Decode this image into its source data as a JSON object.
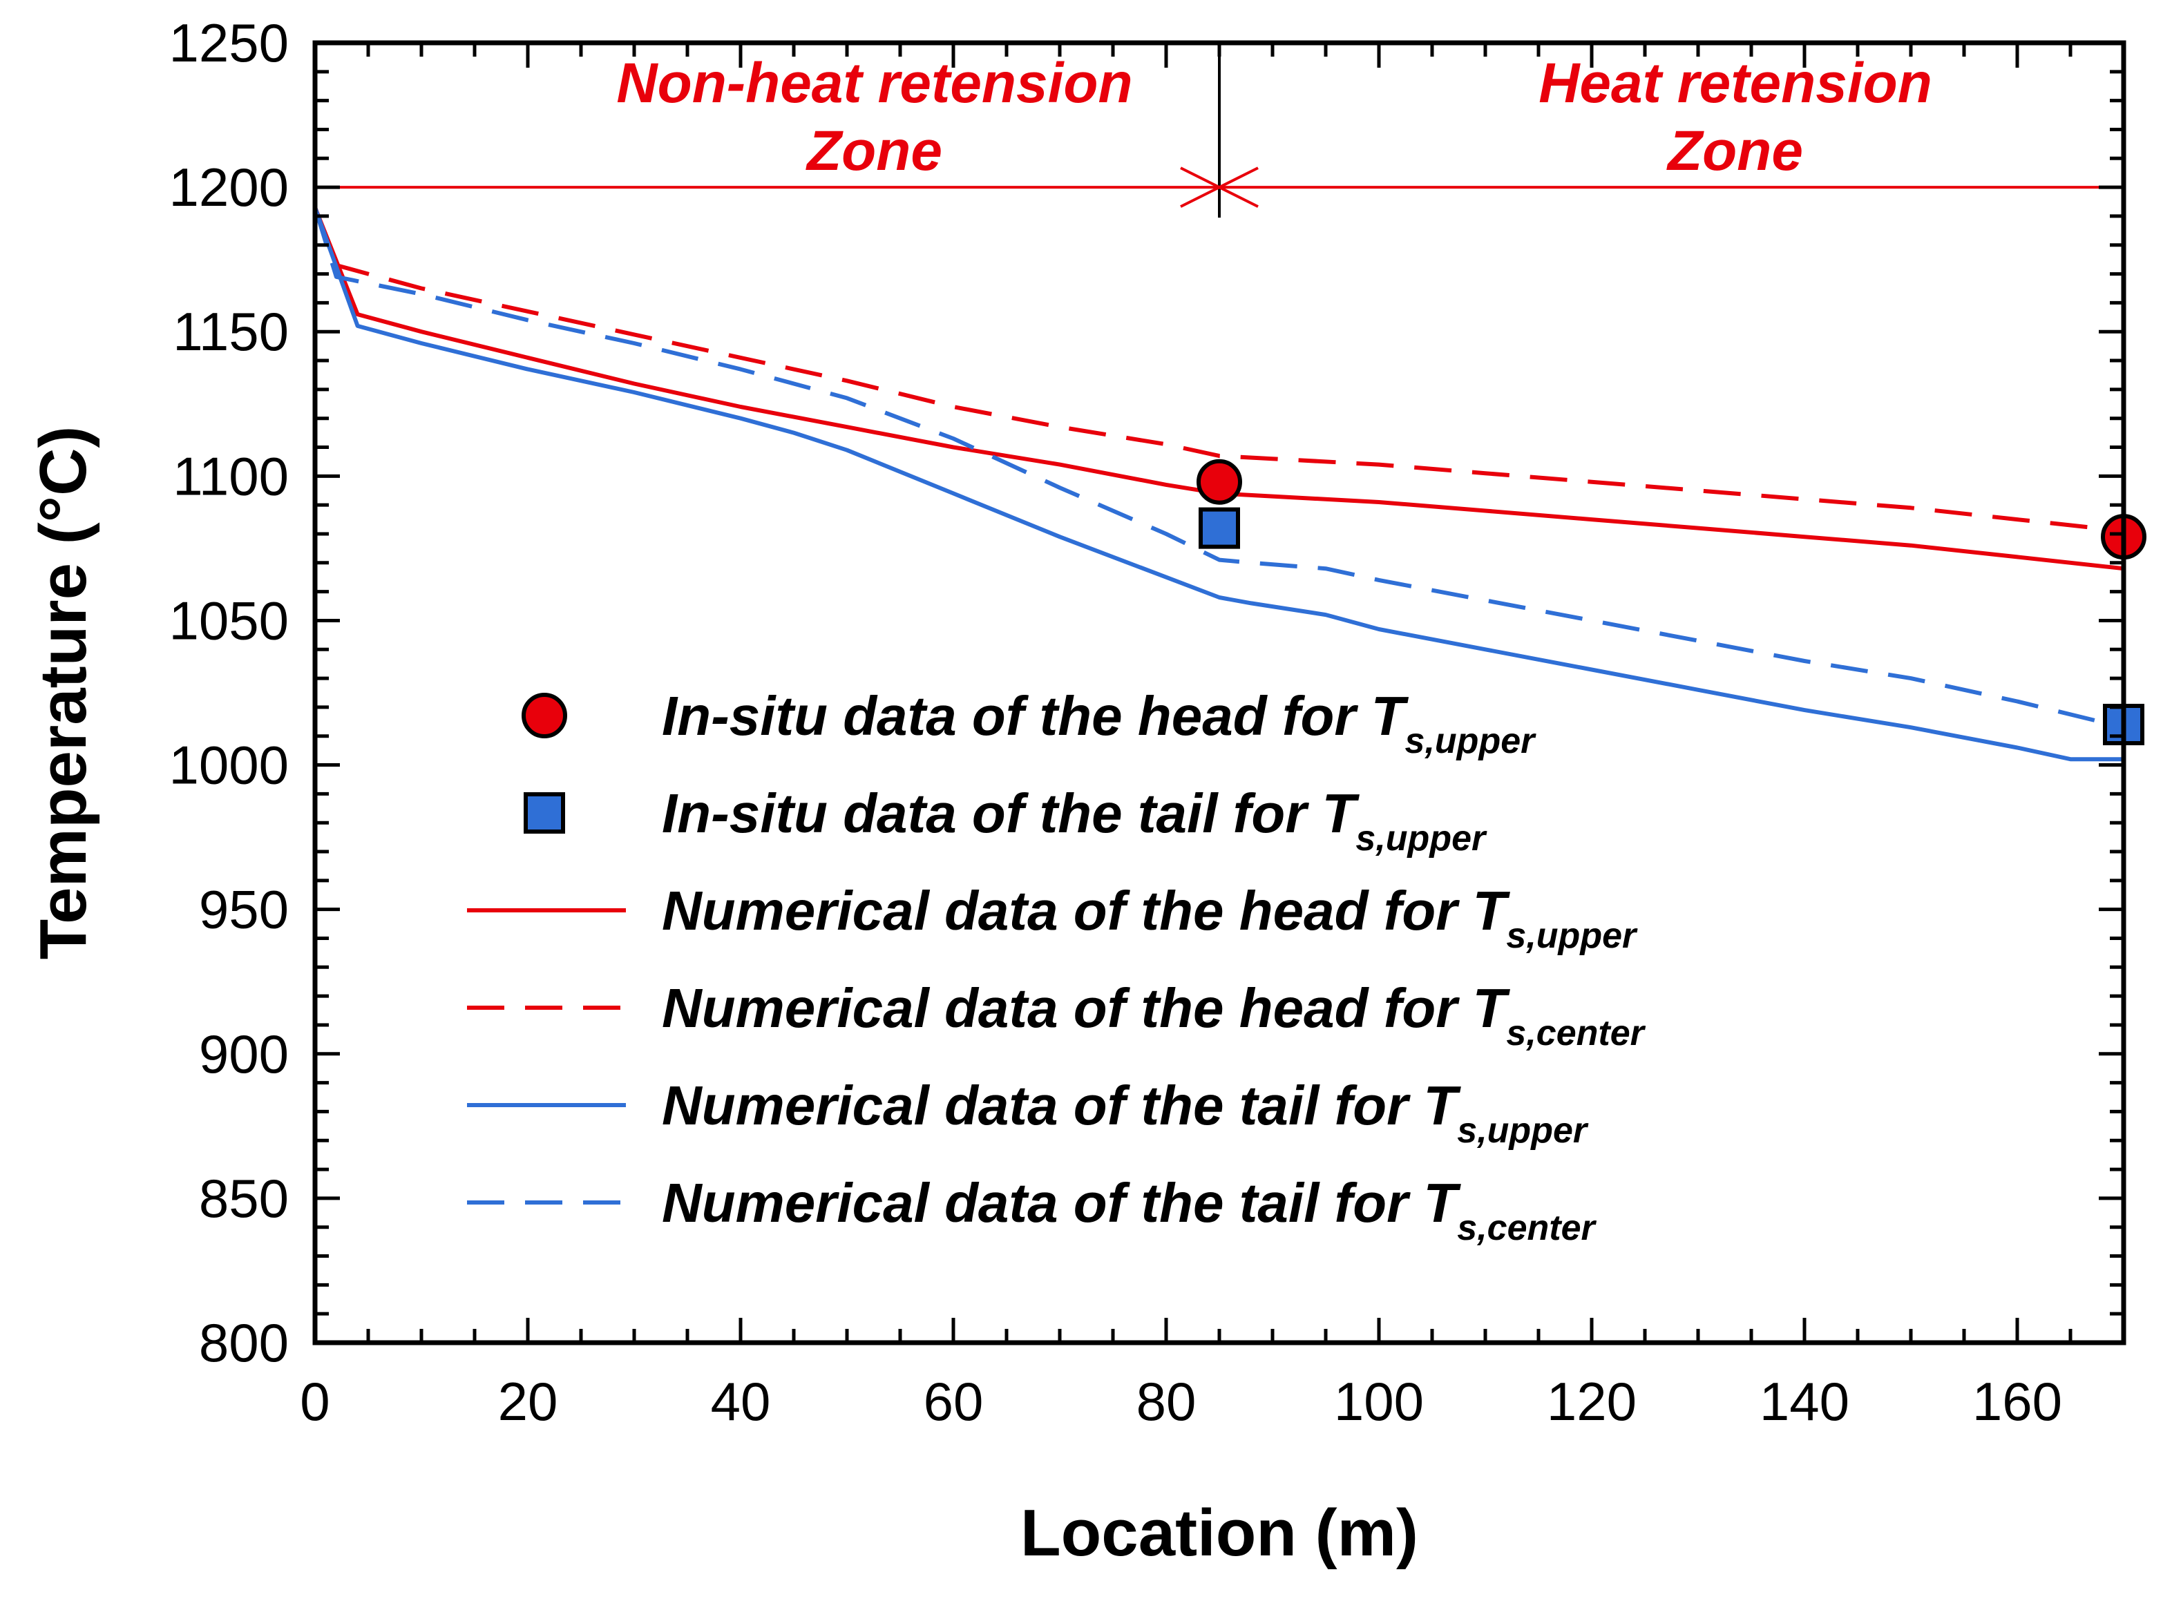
{
  "chart_data": {
    "type": "line",
    "title": "",
    "xlabel": "Location (m)",
    "ylabel": "Temperature (°C)",
    "xlim": [
      0,
      170
    ],
    "ylim": [
      800,
      1250
    ],
    "x_ticks": [
      0,
      20,
      40,
      60,
      80,
      100,
      120,
      140,
      160
    ],
    "y_ticks": [
      800,
      850,
      900,
      950,
      1000,
      1050,
      1100,
      1150,
      1200,
      1250
    ],
    "grid": false,
    "zones": [
      {
        "line1": "Non-heat retension",
        "line2": "Zone",
        "x_start": 0,
        "x_end": 85
      },
      {
        "line1": "Heat retension",
        "line2": "Zone",
        "x_start": 85,
        "x_end": 170
      }
    ],
    "zone_line_y": 1200,
    "zone_divider_x": 85,
    "series": [
      {
        "name": "In-situ data of the head for T_s,upper",
        "legend_main": "In-situ data of the head for T",
        "legend_sub": "s,upper",
        "kind": "marker-circle",
        "color": "#e8000b",
        "x": [
          85,
          170
        ],
        "y": [
          1098,
          1079
        ]
      },
      {
        "name": "In-situ data of the tail for T_s,upper",
        "legend_main": "In-situ data of the tail for T",
        "legend_sub": "s,upper",
        "kind": "marker-square",
        "color": "#2f6fd6",
        "x": [
          85,
          170
        ],
        "y": [
          1082,
          1014
        ]
      },
      {
        "name": "Numerical data of the head for T_s,upper",
        "legend_main": "Numerical data of the head for T",
        "legend_sub": "s,upper",
        "kind": "line-solid",
        "color": "#e8000b",
        "x": [
          0,
          4,
          10,
          20,
          30,
          40,
          50,
          60,
          70,
          80,
          85,
          90,
          100,
          110,
          120,
          130,
          140,
          150,
          160,
          170
        ],
        "y": [
          1193,
          1156,
          1150,
          1141,
          1132,
          1124,
          1117,
          1110,
          1104,
          1097,
          1094,
          1093,
          1091,
          1088,
          1085,
          1082,
          1079,
          1076,
          1072,
          1068
        ]
      },
      {
        "name": "Numerical data of the head for T_s,center",
        "legend_main": "Numerical data of the head for T",
        "legend_sub": "s,center",
        "kind": "line-dashed",
        "color": "#e8000b",
        "x": [
          0,
          2,
          10,
          20,
          30,
          40,
          50,
          60,
          70,
          80,
          85,
          90,
          100,
          110,
          120,
          130,
          140,
          150,
          160,
          170
        ],
        "y": [
          1193,
          1173,
          1165,
          1157,
          1149,
          1141,
          1133,
          1124,
          1117,
          1111,
          1107,
          1106,
          1104,
          1101,
          1098,
          1095,
          1092,
          1089,
          1085,
          1081
        ]
      },
      {
        "name": "Numerical data of the tail for T_s,upper",
        "legend_main": "Numerical data of the tail for T",
        "legend_sub": "s,upper",
        "kind": "line-solid",
        "color": "#2f6fd6",
        "x": [
          0,
          4,
          10,
          20,
          30,
          40,
          45,
          50,
          60,
          70,
          80,
          85,
          88,
          95,
          100,
          110,
          120,
          130,
          140,
          150,
          160,
          165,
          170
        ],
        "y": [
          1193,
          1152,
          1146,
          1137,
          1129,
          1120,
          1115,
          1109,
          1094,
          1079,
          1065,
          1058,
          1056,
          1052,
          1047,
          1040,
          1033,
          1026,
          1019,
          1013,
          1006,
          1002,
          1002
        ]
      },
      {
        "name": "Numerical data of the tail for T_s,center",
        "legend_main": "Numerical data of the tail for T",
        "legend_sub": "s,center",
        "kind": "line-dashed",
        "color": "#2f6fd6",
        "x": [
          0,
          2,
          10,
          20,
          30,
          40,
          50,
          60,
          70,
          80,
          85,
          88,
          95,
          100,
          110,
          120,
          130,
          140,
          150,
          160,
          170
        ],
        "y": [
          1193,
          1169,
          1163,
          1154,
          1146,
          1137,
          1127,
          1113,
          1096,
          1080,
          1071,
          1070,
          1068,
          1064,
          1057,
          1050,
          1043,
          1036,
          1030,
          1022,
          1013
        ]
      }
    ]
  }
}
